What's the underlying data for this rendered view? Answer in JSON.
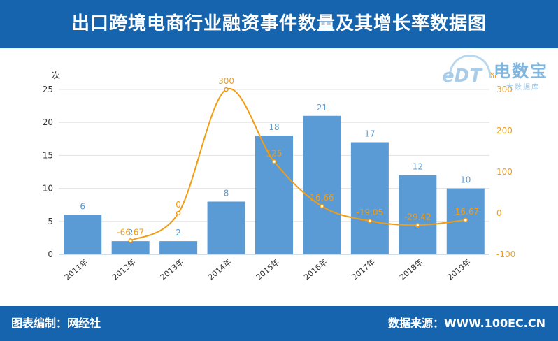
{
  "header": {
    "title": "出口跨境电商行业融资事件数量及其增长率数据图"
  },
  "footer": {
    "left": "图表编制：网经社",
    "right": "数据来源：WWW.100EC.CN"
  },
  "logo": {
    "name": "电数宝",
    "subtitle": "大数据库",
    "mark": "eDT"
  },
  "colors": {
    "bar": "#5b9bd5",
    "line": "#f39c12",
    "header": "#1664ad"
  },
  "chart_data": {
    "type": "bar",
    "categories": [
      "2011年",
      "2012年",
      "2013年",
      "2014年",
      "2015年",
      "2016年",
      "2017年",
      "2018年",
      "2019年"
    ],
    "series": [
      {
        "values": [
          6,
          2,
          2,
          8,
          18,
          21,
          17,
          12,
          10
        ]
      },
      {
        "type": "line",
        "values": [
          null,
          -66.67,
          0,
          300,
          125,
          16.66,
          -19.05,
          -29.42,
          -16.67
        ],
        "labels": [
          "",
          "-66.67",
          "0",
          "300",
          "125",
          "16.66",
          "-19.05",
          "-29.42",
          "-16.67"
        ]
      }
    ],
    "bar_labels": [
      "6",
      "2",
      "2",
      "8",
      "18",
      "21",
      "17",
      "12",
      "10"
    ],
    "ylabel": "次",
    "y2label": "%",
    "ylim": [
      0,
      25
    ],
    "y2lim": [
      -100,
      300
    ],
    "yticks": [
      "0",
      "5",
      "10",
      "15",
      "20",
      "25"
    ],
    "y2ticks": [
      "-100",
      "0",
      "100",
      "200",
      "300"
    ],
    "grid": true
  }
}
